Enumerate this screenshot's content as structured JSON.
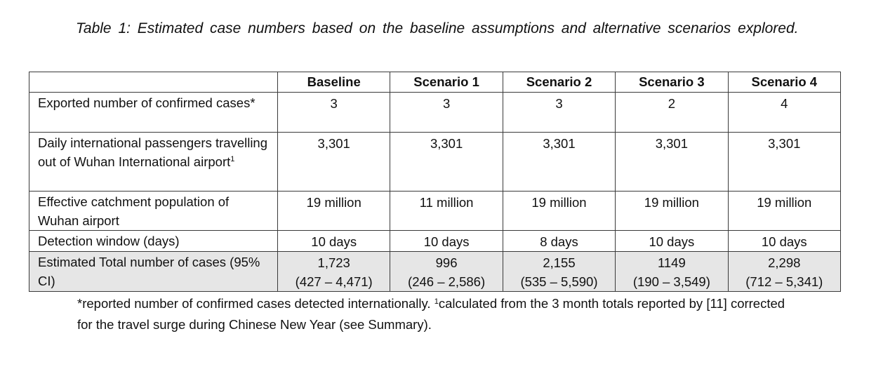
{
  "caption": "Table 1: Estimated case numbers based on the baseline assumptions and alternative scenarios explored.",
  "table": {
    "headers": [
      "",
      "Baseline",
      "Scenario 1",
      "Scenario 2",
      "Scenario 3",
      "Scenario 4"
    ],
    "rows": [
      {
        "label": "Exported number of confirmed cases*",
        "sup": "",
        "values": [
          "3",
          "3",
          "3",
          "2",
          "4"
        ],
        "ci": []
      },
      {
        "label": "Daily international passengers travelling out of Wuhan International airport",
        "sup": "1",
        "values": [
          "3,301",
          "3,301",
          "3,301",
          "3,301",
          "3,301"
        ],
        "ci": []
      },
      {
        "label": "Effective catchment population of Wuhan airport",
        "sup": "",
        "values": [
          "19 million",
          "11 million",
          "19 million",
          "19 million",
          "19 million"
        ],
        "ci": []
      },
      {
        "label": "Detection window (days)",
        "sup": "",
        "values": [
          "10 days",
          "10 days",
          "8 days",
          "10 days",
          "10 days"
        ],
        "ci": []
      },
      {
        "label": "Estimated Total number of cases (95% CI)",
        "sup": "",
        "values": [
          "1,723",
          "996",
          "2,155",
          "1149",
          "2,298"
        ],
        "ci": [
          "(427 – 4,471)",
          "(246 – 2,586)",
          "(535 – 5,590)",
          "(190 – 3,549)",
          "(712 – 5,341)"
        ]
      }
    ]
  },
  "footnote": {
    "part1": "*reported number of confirmed cases detected internationally. ",
    "sup": "1",
    "part2": "calculated from the 3 month totals reported by [11] corrected for the travel surge during Chinese New Year (see Summary)."
  }
}
